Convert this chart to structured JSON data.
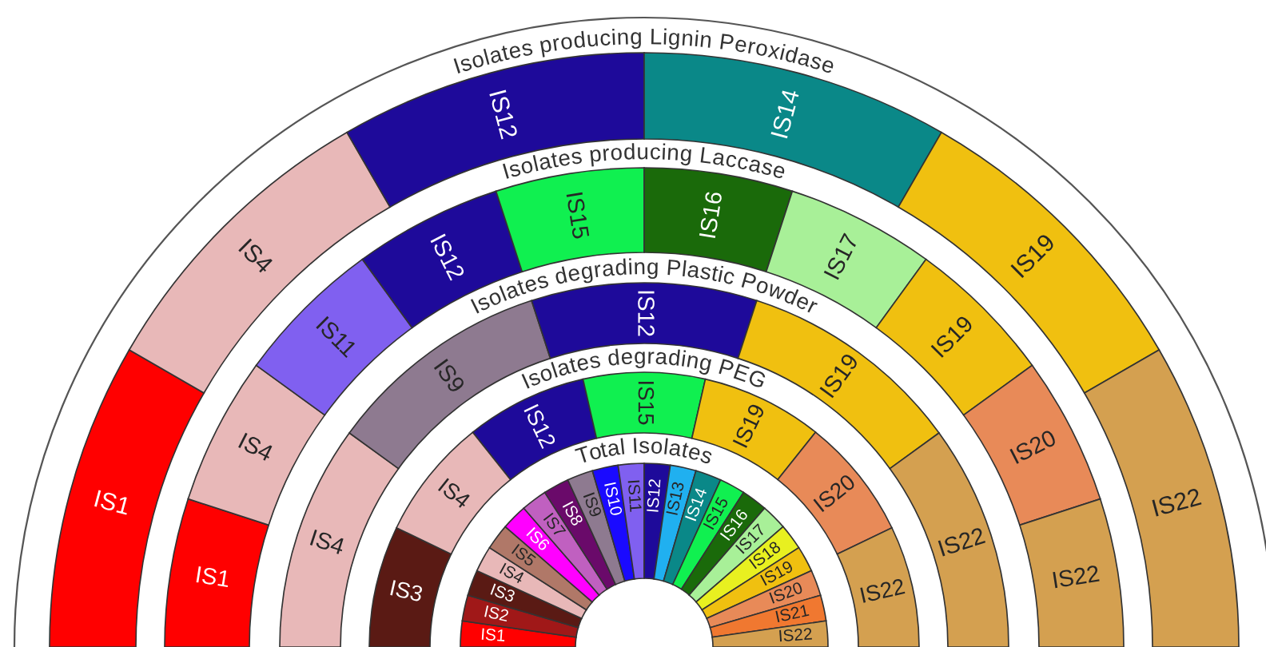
{
  "chart_data": {
    "type": "donut",
    "categories": [
      "IS1",
      "IS2",
      "IS3",
      "IS4",
      "IS5",
      "IS6",
      "IS7",
      "IS8",
      "IS9",
      "IS10",
      "IS11",
      "IS12",
      "IS13",
      "IS14",
      "IS15",
      "IS16",
      "IS17",
      "IS18",
      "IS19",
      "IS20",
      "IS21",
      "IS22"
    ],
    "colors": [
      "#ff0000",
      "#a01818",
      "#5a1a14",
      "#e8b8b8",
      "#b07868",
      "#ff00ff",
      "#c060c0",
      "#6a0a6a",
      "#8e7a90",
      "#1a0aff",
      "#8060f0",
      "#1e0a9a",
      "#20b0f0",
      "#0a8888",
      "#10f050",
      "#1a6a0a",
      "#a8f098",
      "#e8f020",
      "#f0c010",
      "#e88a58",
      "#f07830",
      "#d4a050"
    ],
    "series": [
      {
        "name": "Total Isolates",
        "values": [
          4.55,
          4.55,
          4.55,
          4.55,
          4.55,
          4.55,
          4.55,
          4.55,
          4.55,
          4.55,
          4.55,
          4.55,
          4.55,
          4.55,
          4.55,
          4.55,
          4.55,
          4.55,
          4.55,
          4.55,
          4.55,
          4.55
        ]
      },
      {
        "name": "Isolates degrading PEG",
        "values": [
          null,
          null,
          14.29,
          14.29,
          null,
          null,
          null,
          null,
          null,
          null,
          null,
          14.29,
          null,
          null,
          14.29,
          null,
          null,
          null,
          14.29,
          14.29,
          null,
          14.29
        ]
      },
      {
        "name": "Isolates degrading Plastic Powder",
        "values": [
          null,
          null,
          null,
          20,
          null,
          null,
          null,
          null,
          20,
          null,
          null,
          20,
          null,
          null,
          null,
          null,
          null,
          null,
          20,
          null,
          null,
          20
        ]
      },
      {
        "name": "Isolates producing Laccase",
        "values": [
          10,
          null,
          null,
          10,
          null,
          null,
          null,
          null,
          null,
          null,
          10,
          10,
          null,
          null,
          10,
          10,
          10,
          null,
          10,
          10,
          null,
          10
        ]
      },
      {
        "name": "Isolates producing Lignin Peroxidase",
        "values": [
          16.67,
          null,
          null,
          16.67,
          null,
          null,
          null,
          null,
          null,
          null,
          null,
          16.67,
          null,
          16.67,
          null,
          null,
          null,
          null,
          16.67,
          null,
          null,
          16.67
        ]
      }
    ]
  }
}
